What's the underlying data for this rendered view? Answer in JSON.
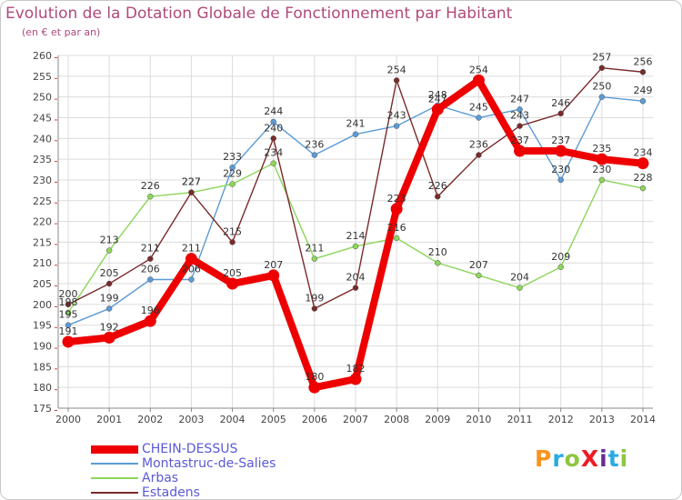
{
  "title": "Evolution de la Dotation Globale de Fonctionnement par Habitant",
  "subtitle": "(en € et par an)",
  "logo": {
    "text": "ProXiti",
    "colors": [
      "#f7941d",
      "#29abe2",
      "#8dc63f",
      "#ed1c24",
      "#662d91",
      "#29abe2",
      "#8dc63f"
    ]
  },
  "chart_data": {
    "type": "line",
    "title": "Evolution de la Dotation Globale de Fonctionnement par Habitant",
    "xlabel": "",
    "ylabel": "(en € et par an)",
    "ylim": [
      175,
      260
    ],
    "yticks": [
      175,
      180,
      185,
      190,
      195,
      200,
      205,
      210,
      215,
      220,
      225,
      230,
      235,
      240,
      245,
      250,
      255,
      260
    ],
    "categories": [
      "2000",
      "2001",
      "2002",
      "2003",
      "2004",
      "2005",
      "2006",
      "2007",
      "2008",
      "2009",
      "2010",
      "2011",
      "2012",
      "2013",
      "2014"
    ],
    "grid": true,
    "legend": "bottom-left",
    "series": [
      {
        "name": "CHEIN-DESSUS",
        "color": "#ee0000",
        "values": [
          191,
          192,
          196,
          211,
          205,
          207,
          180,
          182,
          223,
          247,
          254,
          237,
          237,
          235,
          234
        ]
      },
      {
        "name": "Montastruc-de-Salies",
        "color": "#5b9bd5",
        "values": [
          195,
          199,
          206,
          206,
          233,
          244,
          236,
          241,
          243,
          248,
          245,
          247,
          230,
          250,
          249
        ]
      },
      {
        "name": "Arbas",
        "color": "#8cd65a",
        "values": [
          198,
          213,
          226,
          227,
          229,
          234,
          211,
          214,
          216,
          210,
          207,
          204,
          209,
          230,
          228
        ]
      },
      {
        "name": "Estadens",
        "color": "#7a2a2a",
        "values": [
          200,
          205,
          211,
          227,
          215,
          240,
          199,
          204,
          254,
          226,
          236,
          243,
          246,
          257,
          256
        ]
      }
    ]
  }
}
